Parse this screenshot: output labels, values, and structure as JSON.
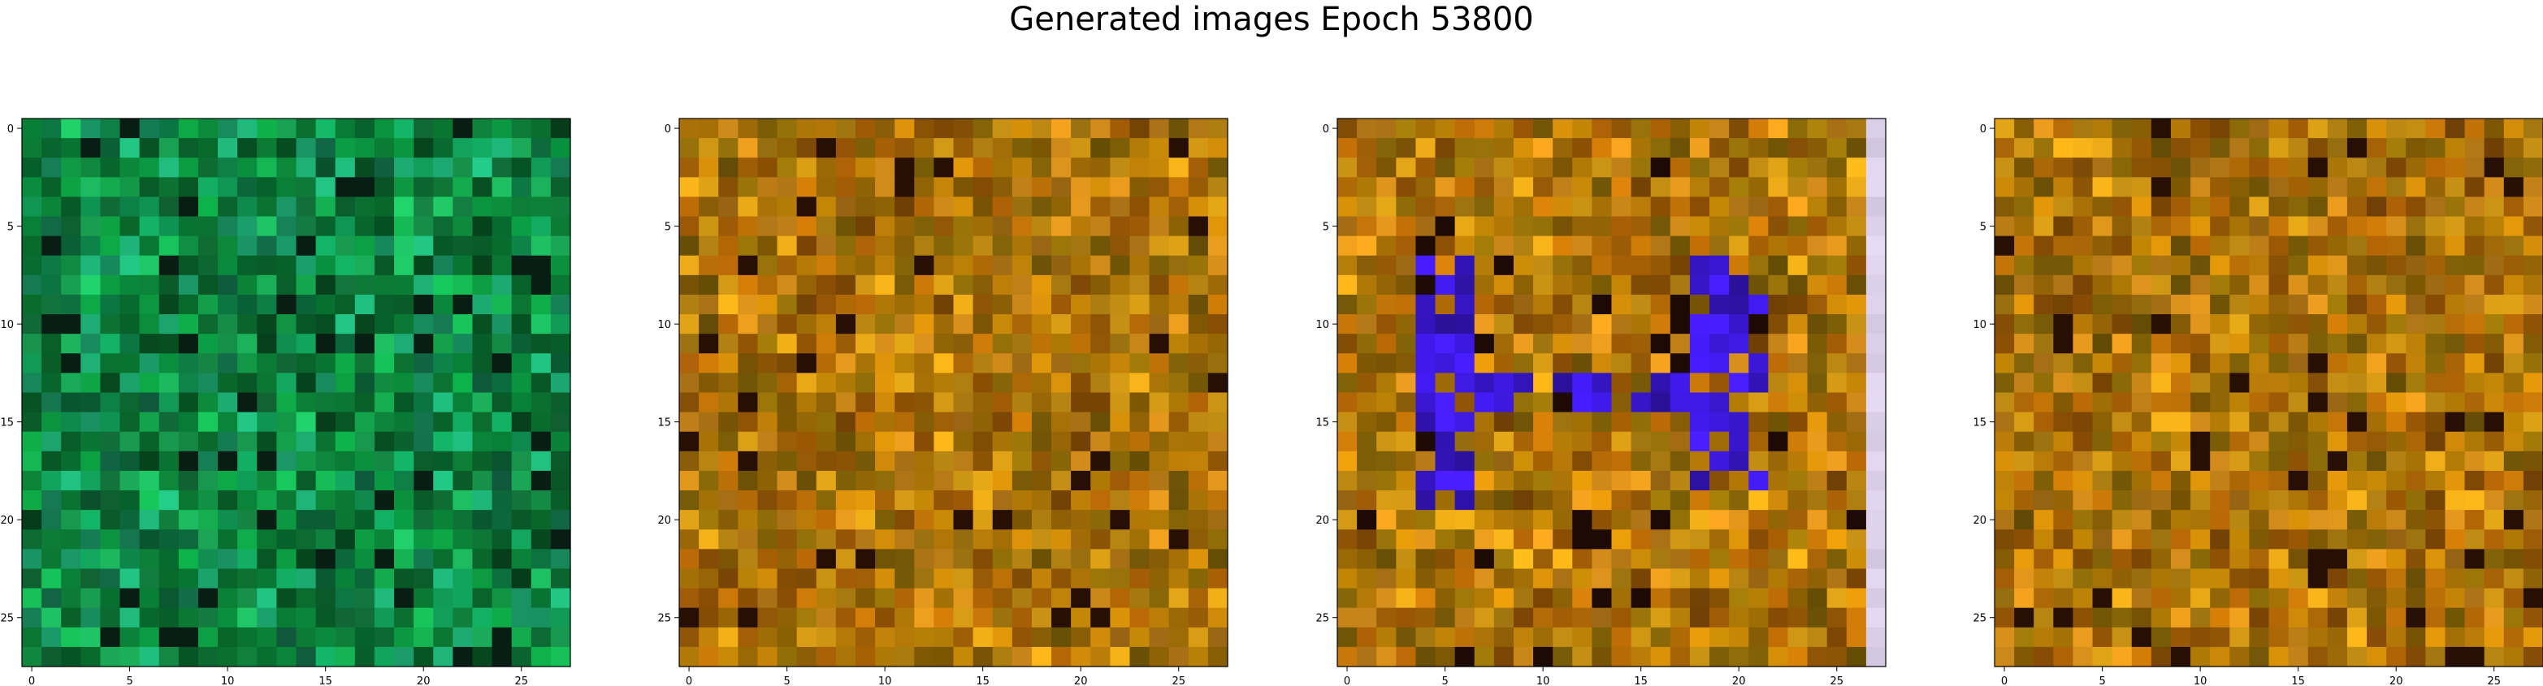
{
  "title": "Generated images Epoch 53800",
  "colors": {
    "green_panel": [
      "#0b8a3a",
      "#129c48",
      "#087a35",
      "#1aa655",
      "#0a6b2e",
      "#1b9f6a",
      "#0f8f50"
    ],
    "orange_panel": [
      "#b36b07",
      "#c28208",
      "#9e5a05",
      "#cf8a1a",
      "#8c6a08",
      "#a87406",
      "#d49a15"
    ],
    "purple_cells": "#3a18d6",
    "lavender_column": "#e3d6f2"
  },
  "chart_data": [
    {
      "type": "heatmap",
      "panel": 1,
      "description_scheme": "green",
      "xlim": [
        -0.5,
        27.5
      ],
      "ylim": [
        27.5,
        -0.5
      ],
      "x_ticks": [
        0,
        5,
        10,
        15,
        20,
        25
      ],
      "y_ticks": [
        0,
        5,
        10,
        15,
        20,
        25
      ]
    },
    {
      "type": "heatmap",
      "panel": 2,
      "description_scheme": "orange",
      "xlim": [
        -0.5,
        27.5
      ],
      "ylim": [
        27.5,
        -0.5
      ],
      "x_ticks": [
        0,
        5,
        10,
        15,
        20,
        25
      ],
      "y_ticks": [
        0,
        5,
        10,
        15,
        20,
        25
      ]
    },
    {
      "type": "heatmap",
      "panel": 3,
      "description_scheme": "orange-purple",
      "xlim": [
        -0.5,
        27.5
      ],
      "ylim": [
        27.5,
        -0.5
      ],
      "x_ticks": [
        0,
        5,
        10,
        15,
        20,
        25
      ],
      "y_ticks": [
        0,
        5,
        10,
        15,
        20,
        25
      ]
    },
    {
      "type": "heatmap",
      "panel": 4,
      "description_scheme": "orange",
      "xlim": [
        -0.5,
        27.5
      ],
      "ylim": [
        27.5,
        -0.5
      ],
      "x_ticks": [
        0,
        5,
        10,
        15,
        20,
        25
      ],
      "y_ticks": [
        0,
        5,
        10,
        15,
        20,
        25
      ]
    }
  ]
}
